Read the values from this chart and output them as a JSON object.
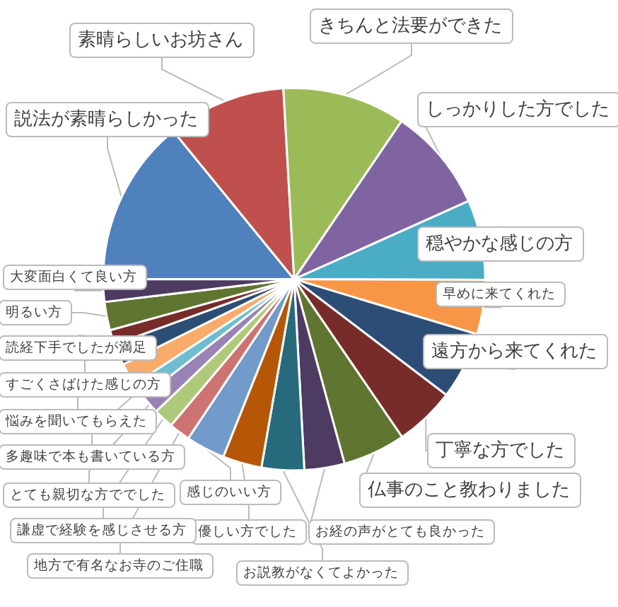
{
  "chart_data": {
    "type": "pie",
    "categories": [
      "説法が素晴らしかった",
      "素晴らしいお坊さん",
      "きちんと法要ができた",
      "しっかりした方でした",
      "穏やかな感じの方",
      "早めに来てくれた",
      "遠方から来てくれた",
      "丁寧な方でした",
      "仏事のこと教わりました",
      "お経の声がとても良かった",
      "お説教がなくてよかった",
      "優しい方でした",
      "感じのいい方",
      "地方で有名なお寺のご住職",
      "謙虚で経験を感じさせる方",
      "とても親切な方ででした",
      "多趣味で本も書いている方",
      "悩みを聞いてもらえた",
      "すごくさばけた感じの方",
      "読経下手でしたが満足",
      "明るい方",
      "大変面白くて良い方"
    ],
    "values": [
      14.1,
      10,
      10.4,
      8.8,
      6.75,
      4.6,
      5.7,
      5.1,
      5.3,
      3.4,
      3.6,
      3.3,
      3.3,
      1.8,
      1.7,
      1.6,
      1.3,
      1.9,
      1.8,
      1.25,
      2.4,
      1.9
    ],
    "colors": [
      "#4f81bd",
      "#c0504d",
      "#9bbb59",
      "#8064a2",
      "#4bacc6",
      "#f79646",
      "#2c4d75",
      "#772c2a",
      "#5f7530",
      "#4d3b62",
      "#276a7c",
      "#b65708",
      "#729aca",
      "#cd7371",
      "#afc97a",
      "#9983b5",
      "#6fbdd1",
      "#f9ab6b",
      "#2c4d75",
      "#772c2a",
      "#5f7530",
      "#4d3b62"
    ],
    "legend": false
  }
}
